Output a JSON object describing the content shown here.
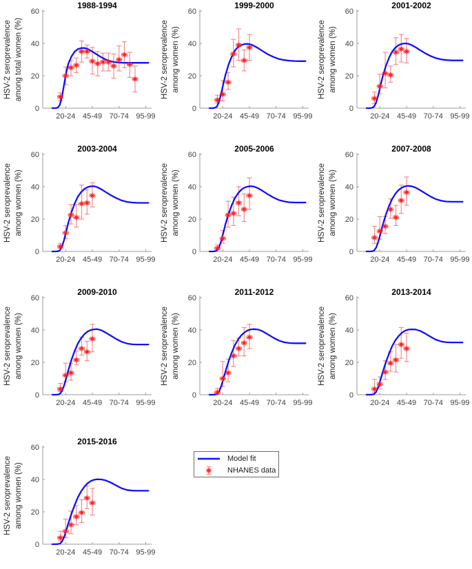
{
  "figure": {
    "background": "#ffffff",
    "grid_columns": 3,
    "x_axis": {
      "tick_ages": [
        22.5,
        47.5,
        72.5,
        97.5
      ],
      "tick_labels": [
        "20-24",
        "45-49",
        "70-74",
        "95-99"
      ],
      "xlim": [
        1,
        103
      ]
    },
    "y_axis": {
      "ticks": [
        0,
        20,
        40,
        60
      ],
      "tick_labels": [
        "0",
        "20",
        "40",
        "60"
      ],
      "ylim": [
        0,
        60
      ]
    }
  },
  "colors": {
    "model_line": "#0f0fff",
    "data_marker": "#ff1f1f",
    "error_bar": "#f58a8a",
    "axis": "#999999",
    "tick_label": "#3f3f3f",
    "axis_label": "#262626",
    "title": "#000000",
    "legend_border": "#6b6b6b"
  },
  "legend": {
    "items": [
      {
        "label": "Model fit",
        "marker": "line"
      },
      {
        "label": "NHANES data",
        "marker": "errorbar-asterisk"
      }
    ]
  },
  "chart_data": {
    "type": "line",
    "description": "HSV-2 seroprevalence among women by age group: model fit curves with NHANES survey data points and 95% CI error bars, one panel per survey period",
    "x_unit": "age group (years)",
    "y_unit": "HSV-2 seroprevalence (%)",
    "model_x": [
      10,
      13,
      15,
      17,
      19,
      21,
      23,
      25,
      28,
      31,
      34,
      37,
      40,
      43,
      46,
      49,
      52,
      56,
      60,
      65,
      70,
      75,
      80,
      85,
      90,
      95,
      100
    ],
    "nhanes_age_halfwidth": 2.5,
    "panels": [
      {
        "title": "1988-1994",
        "ylabel": [
          "HSV-2 seroprevalence",
          "among total women (%)"
        ],
        "model_y": [
          0,
          0,
          0.3,
          2,
          7,
          14.5,
          22,
          27.5,
          32,
          35,
          36.5,
          37.1,
          37.2,
          36.6,
          35.5,
          34.3,
          33,
          31.4,
          30,
          28.9,
          28.3,
          28.1,
          28,
          28,
          28,
          28,
          28
        ],
        "nhanes": {
          "ages": [
            17.5,
            22.5,
            27.5,
            32.5,
            37.5,
            42.5,
            47.5,
            52.5,
            57.5,
            62.5,
            67.5,
            72.5,
            77.5,
            82.5,
            87.5
          ],
          "values": [
            7,
            20,
            25,
            26.5,
            35,
            35,
            29,
            27.5,
            28.5,
            28.5,
            26,
            30,
            33,
            27,
            18
          ],
          "ci_low": [
            4.5,
            14.5,
            20,
            22,
            28.5,
            31,
            21,
            20,
            23,
            23,
            18.5,
            23,
            25,
            19,
            10
          ],
          "ci_high": [
            9.5,
            25.5,
            29.5,
            31,
            41.5,
            39,
            37.5,
            35,
            34,
            34,
            33.5,
            38.5,
            41,
            34.5,
            26
          ]
        }
      },
      {
        "title": "1999-2000",
        "ylabel": [
          "HSV-2 seroprevalence",
          "among women (%)"
        ],
        "model_y": [
          0,
          0,
          0.2,
          1,
          4,
          9,
          15,
          20.5,
          27,
          32,
          35.7,
          37.9,
          39,
          39.6,
          39.7,
          39.3,
          38.4,
          36.9,
          35.2,
          33.2,
          31.6,
          30.4,
          29.7,
          29.3,
          29.1,
          29,
          29
        ],
        "nhanes": {
          "ages": [
            17.5,
            22.5,
            27.5,
            32.5,
            37.5,
            42.5,
            47.5
          ],
          "values": [
            5,
            8.5,
            16,
            33.5,
            39,
            29.5,
            37.5
          ],
          "ci_low": [
            3,
            4.5,
            11.5,
            25.5,
            29.5,
            23,
            29.5
          ],
          "ci_high": [
            8,
            17,
            22,
            42.5,
            49,
            36,
            45.5
          ]
        }
      },
      {
        "title": "2001-2002",
        "ylabel": [
          "HSV-2 seroprevalence",
          "among women (%)"
        ],
        "model_y": [
          0,
          0,
          0.2,
          0.9,
          3.5,
          8,
          13.8,
          19.2,
          25.8,
          31,
          34.9,
          37.4,
          38.9,
          39.7,
          40,
          39.8,
          39,
          37.6,
          35.9,
          33.9,
          32.2,
          30.9,
          30.1,
          29.7,
          29.5,
          29.5,
          29.5
        ],
        "nhanes": {
          "ages": [
            17.5,
            22.5,
            27.5,
            32.5,
            37.5,
            42.5,
            47.5
          ],
          "values": [
            6,
            13.5,
            21.5,
            20.5,
            34.5,
            36.5,
            35
          ],
          "ci_low": [
            3,
            9,
            12.5,
            16,
            27,
            28.5,
            28
          ],
          "ci_high": [
            10,
            21,
            34.5,
            26,
            43.5,
            45.5,
            43
          ]
        }
      },
      {
        "title": "2003-2004",
        "ylabel": [
          "HSV-2 seroprevalence",
          "among women (%)"
        ],
        "model_y": [
          0,
          0,
          0.1,
          0.7,
          3,
          7,
          12.5,
          17.8,
          24.3,
          29.8,
          33.9,
          36.7,
          38.6,
          39.7,
          40.2,
          40.3,
          39.7,
          38.4,
          36.7,
          34.7,
          32.9,
          31.5,
          30.6,
          30.2,
          30,
          30,
          30
        ],
        "nhanes": {
          "ages": [
            17.5,
            22.5,
            27.5,
            32.5,
            37.5,
            42.5,
            47.5
          ],
          "values": [
            3,
            11.5,
            22.5,
            21,
            29.5,
            30,
            34.5
          ],
          "ci_low": [
            2,
            8,
            17,
            15,
            20,
            23,
            27.5
          ],
          "ci_high": [
            5,
            16,
            29,
            29,
            41,
            38,
            42.5
          ]
        }
      },
      {
        "title": "2005-2006",
        "ylabel": [
          "HSV-2 seroprevalence",
          "among women (%)"
        ],
        "model_y": [
          0,
          0,
          0.1,
          0.6,
          2.7,
          6.4,
          11.5,
          16.8,
          23.3,
          28.8,
          33.1,
          36.1,
          38.2,
          39.5,
          40.1,
          40.3,
          40,
          38.9,
          37.3,
          35.2,
          33.3,
          31.8,
          30.9,
          30.4,
          30.2,
          30.2,
          30.2
        ],
        "nhanes": {
          "ages": [
            17.5,
            22.5,
            27.5,
            32.5,
            37.5,
            42.5,
            47.5
          ],
          "values": [
            2,
            8,
            22.5,
            23.5,
            30,
            26,
            34.5
          ],
          "ci_low": [
            1,
            5,
            15,
            16,
            22,
            18.5,
            26
          ],
          "ci_high": [
            4,
            13,
            31,
            33.5,
            40,
            35.5,
            45.5
          ]
        }
      },
      {
        "title": "2007-2008",
        "ylabel": [
          "HSV-2 seroprevalence",
          "among women (%)"
        ],
        "model_y": [
          0,
          0,
          0.1,
          0.5,
          2.4,
          6,
          10.8,
          16,
          22.5,
          28,
          32.4,
          35.6,
          37.9,
          39.4,
          40.2,
          40.5,
          40.3,
          39.4,
          37.9,
          35.9,
          33.9,
          32.3,
          31.3,
          30.8,
          30.7,
          30.7,
          30.7
        ],
        "nhanes": {
          "ages": [
            17.5,
            22.5,
            27.5,
            32.5,
            37.5,
            42.5,
            47.5
          ],
          "values": [
            8.5,
            12.5,
            15.5,
            26,
            21,
            31.5,
            36.5
          ],
          "ci_low": [
            5,
            7.5,
            11,
            20.5,
            16,
            23.5,
            28.5
          ],
          "ci_high": [
            15.5,
            21.5,
            21.5,
            32.5,
            28.5,
            41,
            46
          ]
        }
      },
      {
        "title": "2009-2010",
        "ylabel": [
          "HSV-2 seroprevalence",
          "among women (%)"
        ],
        "model_y": [
          0,
          0,
          0.1,
          0.5,
          2.2,
          5.6,
          10.2,
          15.2,
          21.7,
          27.2,
          31.7,
          35,
          37.4,
          39,
          40,
          40.4,
          40.5,
          39.8,
          38.4,
          36.4,
          34.4,
          32.7,
          31.6,
          31.1,
          31,
          31,
          31
        ],
        "nhanes": {
          "ages": [
            17.5,
            22.5,
            27.5,
            32.5,
            37.5,
            42.5,
            47.5
          ],
          "values": [
            3.5,
            12,
            13.5,
            21.5,
            28.5,
            26.5,
            34.5
          ],
          "ci_low": [
            2,
            8,
            9,
            18.5,
            24.5,
            21,
            26.5
          ],
          "ci_high": [
            7,
            19.5,
            19.5,
            27,
            35.5,
            33,
            43.5
          ]
        }
      },
      {
        "title": "2011-2012",
        "ylabel": [
          "HSV-2 seroprevalence",
          "among women (%)"
        ],
        "model_y": [
          0,
          0,
          0.1,
          0.4,
          2,
          5.2,
          9.5,
          14.4,
          20.7,
          26.2,
          30.8,
          34.3,
          36.8,
          38.6,
          39.8,
          40.4,
          40.5,
          40.2,
          39.1,
          37.2,
          35.2,
          33.5,
          32.4,
          31.9,
          31.8,
          31.8,
          31.8
        ],
        "nhanes": {
          "ages": [
            17.5,
            22.5,
            27.5,
            32.5,
            37.5,
            42.5,
            47.5
          ],
          "values": [
            1.5,
            10,
            13.5,
            24,
            28.5,
            32,
            35.5
          ],
          "ci_low": [
            0.5,
            5,
            8,
            17.5,
            24,
            24,
            28.5
          ],
          "ci_high": [
            4,
            20.5,
            22,
            33.5,
            35,
            41.5,
            43.5
          ]
        }
      },
      {
        "title": "2013-2014",
        "ylabel": [
          "HSV-2 seroprevalence",
          "among women (%)"
        ],
        "model_y": [
          0,
          0,
          0.1,
          0.4,
          1.8,
          4.8,
          9,
          13.7,
          19.8,
          25.3,
          30,
          33.6,
          36.2,
          38.2,
          39.5,
          40.2,
          40.4,
          40.3,
          39.5,
          37.8,
          35.8,
          34,
          32.9,
          32.4,
          32.3,
          32.3,
          32.3
        ],
        "nhanes": {
          "ages": [
            17.5,
            22.5,
            27.5,
            32.5,
            37.5,
            42.5,
            47.5
          ],
          "values": [
            3.5,
            6.5,
            14,
            19.5,
            21.5,
            31,
            28.5
          ],
          "ci_low": [
            1.5,
            3.5,
            9.5,
            14.5,
            14,
            22.5,
            20.5
          ],
          "ci_high": [
            9.5,
            11,
            21,
            26.5,
            31,
            41.5,
            38
          ]
        }
      },
      {
        "title": "2015-2016",
        "ylabel": [
          "HSV-2 seroprevalence",
          "among women (%)"
        ],
        "model_y": [
          0,
          0,
          0.1,
          0.3,
          1.6,
          4.4,
          8.4,
          12.9,
          18.9,
          24.3,
          29,
          32.7,
          35.5,
          37.6,
          39,
          39.8,
          40.1,
          40,
          39.4,
          38,
          36.2,
          34.5,
          33.5,
          33.1,
          33,
          33,
          33
        ],
        "nhanes": {
          "ages": [
            17.5,
            22.5,
            27.5,
            32.5,
            37.5,
            42.5,
            47.5
          ],
          "values": [
            4,
            8,
            12,
            17,
            19.5,
            28.5,
            25.5
          ],
          "ci_low": [
            2,
            4,
            6.5,
            12,
            13.5,
            22,
            18
          ],
          "ci_high": [
            8,
            15.5,
            20.5,
            24,
            27.5,
            36,
            34.5
          ]
        }
      }
    ]
  }
}
